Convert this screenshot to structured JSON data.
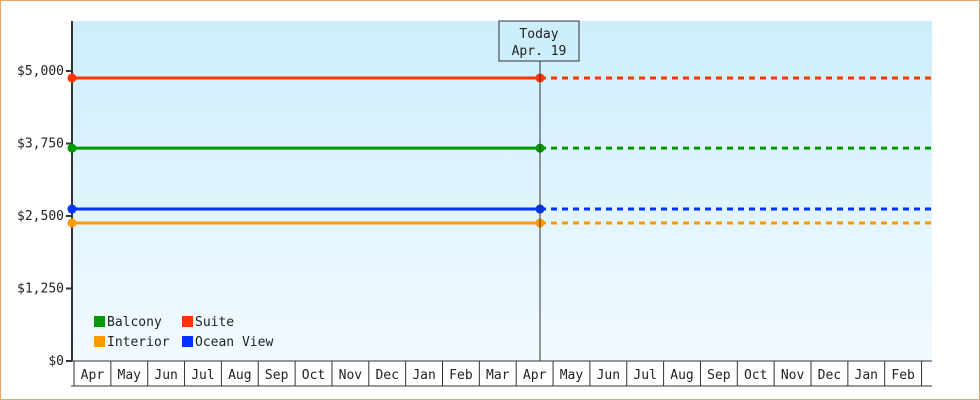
{
  "chart_data": {
    "type": "line",
    "title": "",
    "xlabel": "",
    "ylabel": "",
    "ylim": [
      0,
      5850
    ],
    "yticks": [
      "$0",
      "$1,250",
      "$2,500",
      "$3,750",
      "$5,000"
    ],
    "ytick_values": [
      0,
      1250,
      2500,
      3750,
      5000
    ],
    "categories": [
      "Apr",
      "May",
      "Jun",
      "Jul",
      "Aug",
      "Sep",
      "Oct",
      "Nov",
      "Dec",
      "Jan",
      "Feb",
      "Mar",
      "Apr",
      "May",
      "Jun",
      "Jul",
      "Aug",
      "Sep",
      "Oct",
      "Nov",
      "Dec",
      "Jan",
      "Feb"
    ],
    "today_index": 12,
    "today_label": "Today",
    "today_date": "Apr. 19",
    "legend_position": "bottom-left",
    "series": [
      {
        "name": "Balcony",
        "color": "#009900",
        "value": 3670
      },
      {
        "name": "Suite",
        "color": "#ff3300",
        "value": 4880
      },
      {
        "name": "Interior",
        "color": "#ff9900",
        "value": 2380
      },
      {
        "name": "Ocean View",
        "color": "#0033ff",
        "value": 2620
      }
    ],
    "note_style": "solid up to today, dotted projection after"
  }
}
